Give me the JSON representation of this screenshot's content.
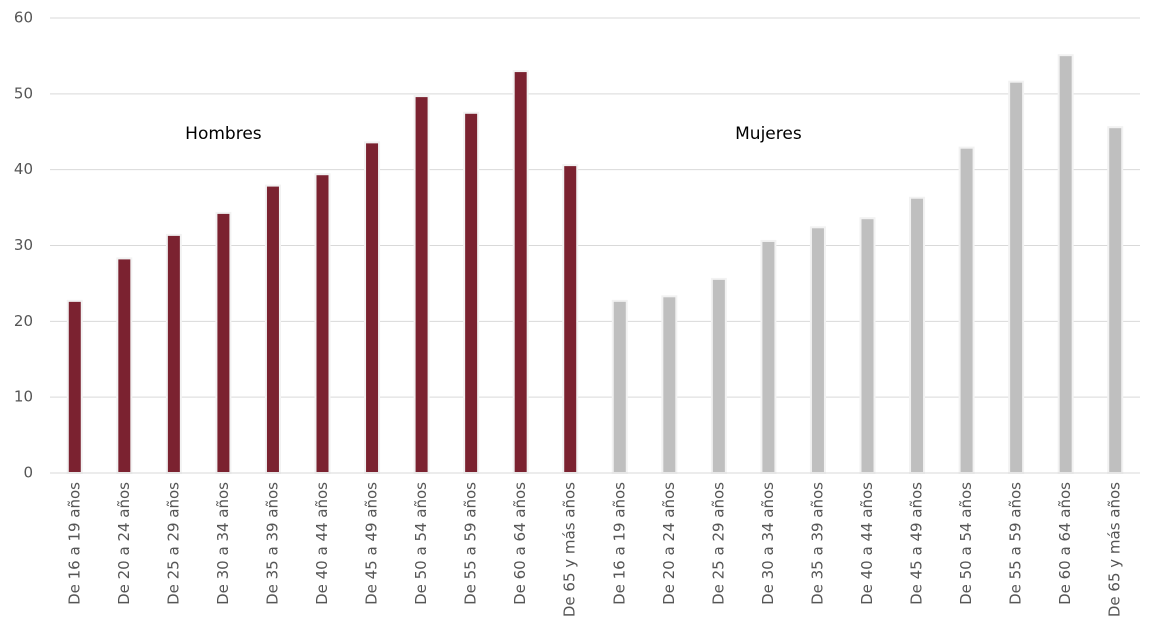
{
  "chart_data": {
    "type": "bar",
    "categories": [
      "De 16 a 19 años",
      "De 20 a 24 años",
      "De 25 a 29 años",
      "De 30 a 34 años",
      "De 35 a 39 años",
      "De 40 a 44 años",
      "De 45 a 49 años",
      "De 50 a 54 años",
      "De 55 a 59 años",
      "De 60 a 64 años",
      "De 65 y más años",
      "De 16 a 19 años",
      "De 20 a 24 años",
      "De 25 a 29 años",
      "De 30 a 34 años",
      "De 35 a 39 años",
      "De 40 a 44 años",
      "De 45 a 49 años",
      "De 50 a 54 años",
      "De 55 a 59 años",
      "De 60 a 64 años",
      "De 65 y más años"
    ],
    "series": [
      {
        "name": "Hombres",
        "color": "#7b2230",
        "values": [
          22.7,
          28.3,
          31.4,
          34.3,
          37.9,
          39.4,
          43.6,
          49.7,
          47.5,
          53.0,
          40.6,
          null,
          null,
          null,
          null,
          null,
          null,
          null,
          null,
          null,
          null,
          null
        ]
      },
      {
        "name": "Mujeres",
        "color": "#bfbfbf",
        "values": [
          null,
          null,
          null,
          null,
          null,
          null,
          null,
          null,
          null,
          null,
          null,
          22.7,
          23.3,
          25.6,
          30.6,
          32.4,
          33.6,
          36.3,
          42.9,
          51.6,
          55.1,
          45.6
        ]
      }
    ],
    "ylim": [
      0,
      60
    ],
    "yticks": [
      0,
      10,
      20,
      30,
      40,
      50,
      60
    ],
    "grid": true
  }
}
